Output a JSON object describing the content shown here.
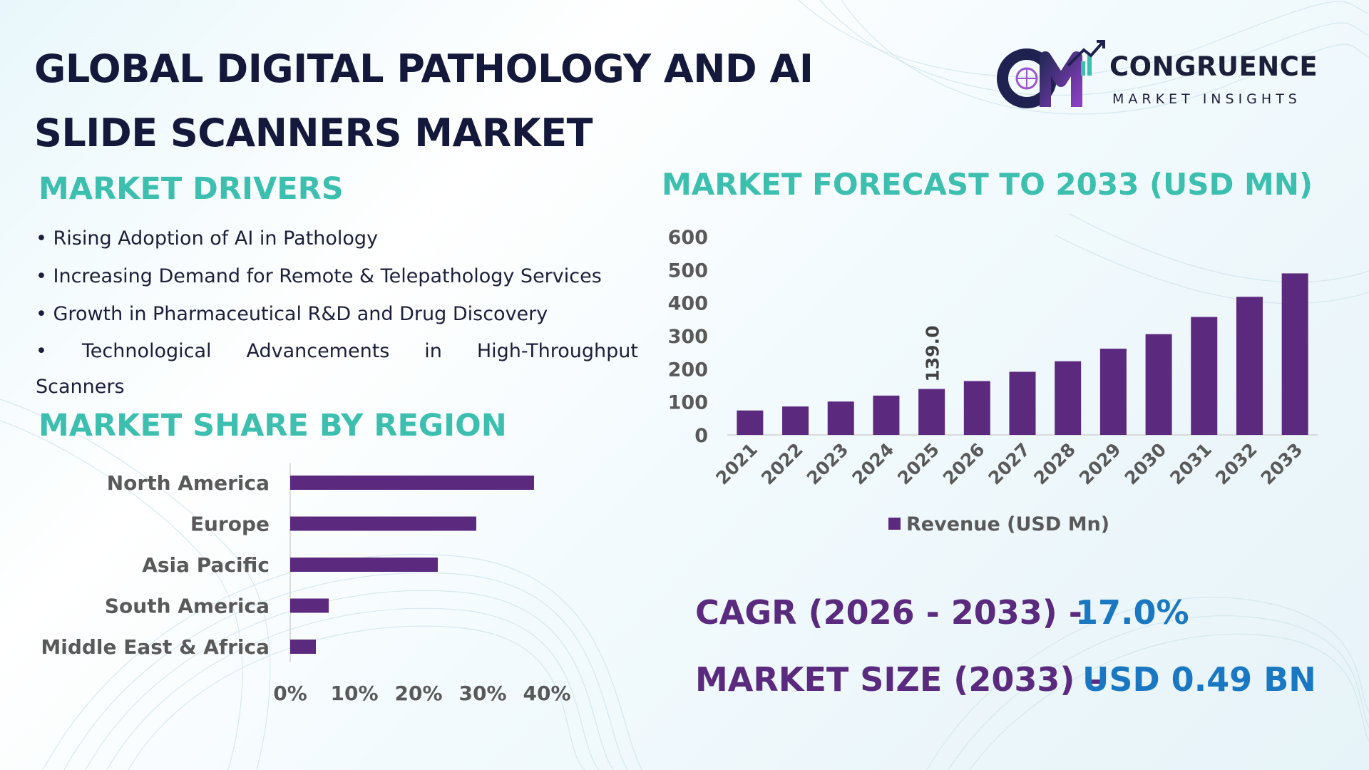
{
  "title_line1": "GLOBAL DIGITAL PATHOLOGY AND AI",
  "title_line2": "SLIDE SCANNERS MARKET",
  "logo": {
    "name": "CONGRUENCE",
    "tagline": "MARKET INSIGHTS",
    "mark": "CM"
  },
  "drivers": {
    "heading": "MARKET DRIVERS",
    "items": [
      "• Rising Adoption of AI in Pathology",
      "• Increasing Demand for Remote & Telepathology Services",
      "• Growth in Pharmaceutical R&D and Drug Discovery",
      "• Technological Advancements in High-Throughput",
      "Scanners"
    ]
  },
  "region": {
    "heading": "MARKET SHARE BY REGION"
  },
  "forecast": {
    "heading": "MARKET FORECAST TO 2033 (USD MN)"
  },
  "kpis": {
    "cagr_label": "CAGR (2026 - 2033) -",
    "cagr_value": "17.0%",
    "size_label": "MARKET SIZE (2033) –",
    "size_value": "USD 0.49 BN"
  },
  "colors": {
    "bar": "#5b2a7f",
    "heading": "#3cbfae",
    "title": "#14183a",
    "kpi_label": "#5a2a7e",
    "kpi_value": "#1a78c2"
  },
  "chart_data": [
    {
      "type": "bar",
      "orientation": "vertical",
      "categories": [
        "2021",
        "2022",
        "2023",
        "2024",
        "2025",
        "2026",
        "2027",
        "2028",
        "2029",
        "2030",
        "2031",
        "2032",
        "2033"
      ],
      "series": [
        {
          "name": "Revenue (USD Mn)",
          "values": [
            74,
            86,
            101,
            119,
            139.0,
            163,
            191,
            223,
            261,
            305,
            357,
            418,
            489
          ]
        }
      ],
      "data_labels": [
        {
          "category": "2025",
          "text": "139.0"
        }
      ],
      "yticks": [
        "0",
        "100",
        "200",
        "300",
        "400",
        "500",
        "600"
      ],
      "ylim": [
        0,
        600
      ],
      "legend": "bottom",
      "grid": false
    },
    {
      "type": "bar",
      "orientation": "horizontal",
      "categories": [
        "North America",
        "Europe",
        "Asia Pacific",
        "South America",
        "Middle East & Africa"
      ],
      "values": [
        38,
        29,
        23,
        6,
        4
      ],
      "xticks": [
        "0%",
        "10%",
        "20%",
        "30%",
        "40%"
      ],
      "xlim": [
        0,
        40
      ],
      "grid": false
    }
  ]
}
